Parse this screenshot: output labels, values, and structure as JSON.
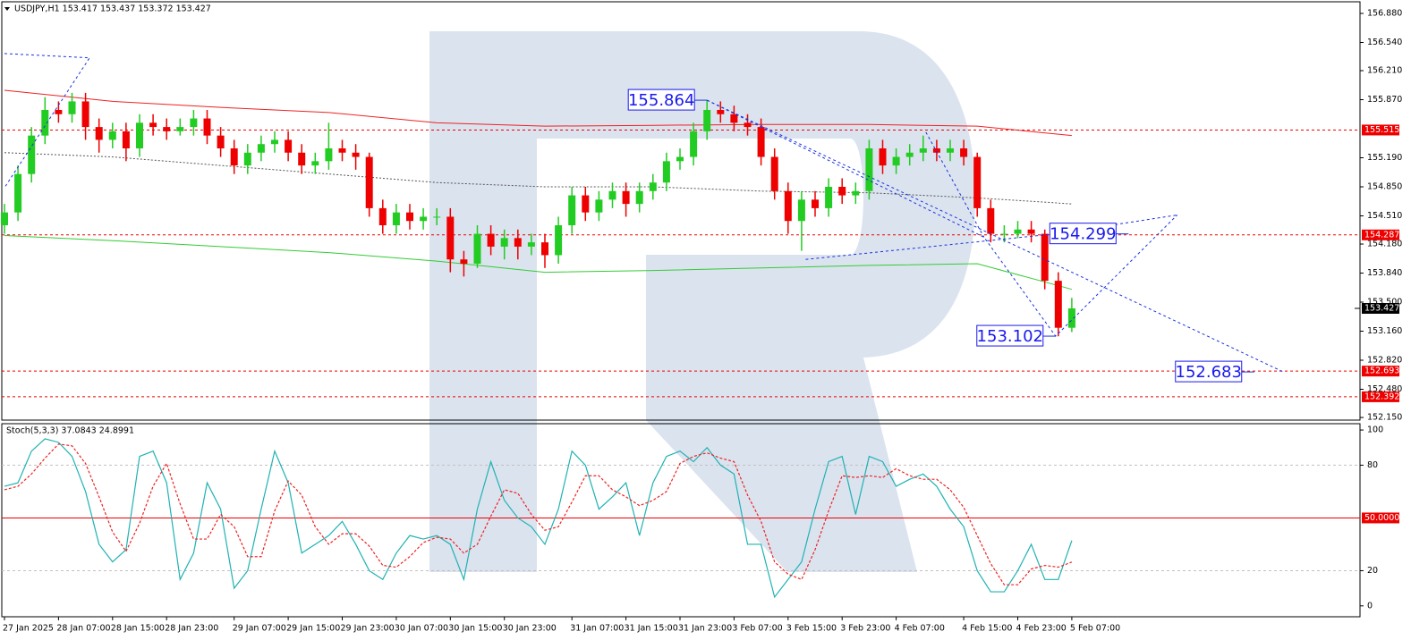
{
  "chart_data": [
    {
      "type": "candlestick",
      "title": "USDJPY,H1 153.417 153.437 153.372 153.427",
      "categories": [
        "27 Jan 2025",
        null,
        null,
        null,
        "28 Jan 07:00",
        null,
        null,
        null,
        "28 Jan 15:00",
        null,
        null,
        null,
        "28 Jan 23:00",
        null,
        null,
        null,
        null,
        "29 Jan 07:00",
        null,
        null,
        null,
        "29 Jan 15:00",
        null,
        null,
        null,
        "29 Jan 23:00",
        null,
        null,
        null,
        "30 Jan 07:00",
        null,
        null,
        null,
        "30 Jan 15:00",
        null,
        null,
        null,
        "30 Jan 23:00",
        null,
        null,
        null,
        null,
        "31 Jan 07:00",
        null,
        null,
        null,
        "31 Jan 15:00",
        null,
        null,
        null,
        "31 Jan 23:00",
        null,
        null,
        null,
        "3 Feb 07:00",
        null,
        null,
        null,
        "3 Feb 15:00",
        null,
        null,
        null,
        "3 Feb 23:00",
        null,
        null,
        null,
        "4 Feb 07:00",
        null,
        null,
        null,
        null,
        "4 Feb 15:00",
        null,
        null,
        null,
        "4 Feb 23:00",
        null,
        null,
        null,
        "5 Feb 07:00"
      ],
      "open": [
        154.4,
        154.55,
        155.0,
        155.45,
        155.75,
        155.7,
        155.85,
        155.55,
        155.4,
        155.5,
        155.3,
        155.6,
        155.55,
        155.5,
        155.55,
        155.65,
        155.45,
        155.3,
        155.1,
        155.25,
        155.35,
        155.4,
        155.25,
        155.1,
        155.15,
        155.3,
        155.25,
        155.2,
        154.6,
        154.4,
        154.55,
        154.45,
        154.5,
        154.5,
        154.0,
        153.95,
        154.3,
        154.15,
        154.25,
        154.15,
        154.2,
        154.05,
        154.4,
        154.75,
        154.55,
        154.7,
        154.8,
        154.65,
        154.8,
        154.9,
        155.15,
        155.2,
        155.5,
        155.75,
        155.7,
        155.6,
        155.55,
        155.2,
        154.8,
        154.45,
        154.7,
        154.6,
        154.85,
        154.75,
        154.8,
        155.3,
        155.1,
        155.2,
        155.25,
        155.3,
        155.25,
        155.3,
        155.2,
        154.6,
        154.3,
        154.3,
        154.35,
        154.3,
        153.75,
        153.2
      ],
      "high": [
        154.65,
        155.1,
        155.55,
        155.9,
        155.85,
        155.95,
        155.95,
        155.65,
        155.6,
        155.6,
        155.7,
        155.7,
        155.65,
        155.65,
        155.75,
        155.75,
        155.55,
        155.4,
        155.35,
        155.45,
        155.5,
        155.5,
        155.35,
        155.25,
        155.6,
        155.4,
        155.35,
        155.25,
        154.7,
        154.65,
        154.65,
        154.6,
        154.6,
        154.6,
        154.1,
        154.4,
        154.4,
        154.35,
        154.35,
        154.3,
        154.3,
        154.5,
        154.85,
        154.85,
        154.8,
        154.9,
        154.9,
        154.9,
        155.0,
        155.25,
        155.3,
        155.6,
        155.86,
        155.85,
        155.8,
        155.7,
        155.65,
        155.3,
        154.9,
        154.8,
        154.8,
        154.95,
        154.95,
        154.9,
        155.4,
        155.4,
        155.3,
        155.35,
        155.45,
        155.4,
        155.4,
        155.4,
        155.25,
        154.7,
        154.4,
        154.45,
        154.45,
        154.35,
        153.85,
        153.55
      ],
      "low": [
        154.3,
        154.45,
        154.9,
        155.35,
        155.6,
        155.6,
        155.4,
        155.25,
        155.3,
        155.15,
        155.2,
        155.45,
        155.4,
        155.45,
        155.45,
        155.35,
        155.2,
        155.0,
        155.0,
        155.15,
        155.25,
        155.15,
        155.0,
        155.0,
        155.05,
        155.15,
        155.05,
        154.5,
        154.3,
        154.3,
        154.35,
        154.35,
        154.4,
        153.85,
        153.8,
        153.9,
        154.05,
        154.0,
        154.0,
        154.05,
        153.9,
        153.95,
        154.3,
        154.45,
        154.45,
        154.6,
        154.5,
        154.55,
        154.7,
        154.8,
        155.05,
        155.1,
        155.4,
        155.6,
        155.5,
        155.45,
        155.1,
        154.7,
        154.3,
        154.1,
        154.5,
        154.5,
        154.65,
        154.65,
        154.7,
        155.0,
        155.0,
        155.1,
        155.15,
        155.15,
        155.15,
        155.1,
        154.5,
        154.2,
        154.2,
        154.25,
        154.2,
        153.65,
        153.1,
        153.15
      ],
      "close": [
        154.55,
        155.0,
        155.45,
        155.75,
        155.7,
        155.85,
        155.55,
        155.4,
        155.5,
        155.3,
        155.6,
        155.55,
        155.5,
        155.55,
        155.65,
        155.45,
        155.3,
        155.1,
        155.25,
        155.35,
        155.4,
        155.25,
        155.1,
        155.15,
        155.3,
        155.25,
        155.2,
        154.6,
        154.4,
        154.55,
        154.45,
        154.5,
        154.5,
        154.0,
        153.95,
        154.3,
        154.15,
        154.25,
        154.15,
        154.2,
        154.05,
        154.4,
        154.75,
        154.55,
        154.7,
        154.8,
        154.65,
        154.8,
        154.9,
        155.15,
        155.2,
        155.5,
        155.75,
        155.7,
        155.6,
        155.55,
        155.2,
        154.8,
        154.45,
        154.7,
        154.6,
        154.85,
        154.75,
        154.8,
        155.3,
        155.1,
        155.2,
        155.25,
        155.3,
        155.25,
        155.3,
        155.2,
        154.6,
        154.3,
        154.3,
        154.35,
        154.3,
        153.75,
        153.2,
        153.427
      ],
      "up_color": "#22cc22",
      "down_color": "#ee0000",
      "ylim": [
        152.119,
        157.016
      ],
      "yticks": [
        {
          "value": 156.88,
          "label": "156.880"
        },
        {
          "value": 156.54,
          "label": "156.540"
        },
        {
          "value": 156.21,
          "label": "156.210"
        },
        {
          "value": 155.87,
          "label": "155.870"
        },
        {
          "value": 155.19,
          "label": "155.190"
        },
        {
          "value": 154.85,
          "label": "154.850"
        },
        {
          "value": 154.51,
          "label": "154.510"
        },
        {
          "value": 154.18,
          "label": "154.180"
        },
        {
          "value": 153.84,
          "label": "153.840"
        },
        {
          "value": 153.5,
          "label": "153.500"
        },
        {
          "value": 153.16,
          "label": "153.160"
        },
        {
          "value": 152.82,
          "label": "152.820"
        },
        {
          "value": 152.48,
          "label": "152.480"
        },
        {
          "value": 152.15,
          "label": "152.150"
        }
      ],
      "lines": [
        {
          "color": "#ee2222",
          "dash": false,
          "x": [
            0,
            8,
            16,
            24,
            32,
            40,
            48,
            56,
            64,
            72,
            79
          ],
          "values": [
            155.98,
            155.85,
            155.78,
            155.72,
            155.6,
            155.56,
            155.57,
            155.58,
            155.58,
            155.56,
            155.45
          ]
        },
        {
          "color": "#555555",
          "dash": true,
          "x": [
            0,
            8,
            16,
            24,
            32,
            40,
            48,
            56,
            64,
            72,
            79
          ],
          "values": [
            155.25,
            155.2,
            155.1,
            155.0,
            154.9,
            154.85,
            154.85,
            154.8,
            154.78,
            154.72,
            154.65
          ]
        },
        {
          "color": "#33cc33",
          "dash": false,
          "x": [
            0,
            8,
            16,
            24,
            32,
            40,
            48,
            56,
            64,
            72,
            79
          ],
          "values": [
            154.28,
            154.22,
            154.15,
            154.08,
            153.98,
            153.85,
            153.87,
            153.9,
            153.93,
            153.95,
            153.65
          ]
        }
      ],
      "forecast_color": "#1a33dd",
      "forecast": [
        {
          "x": [
            0,
            6.3,
            0
          ],
          "values": [
            156.41,
            156.36,
            154.84
          ]
        },
        {
          "x": [
            52,
            72.5,
            77.8,
            86.8
          ],
          "values": [
            155.864,
            154.26,
            153.102,
            154.52
          ]
        },
        {
          "x": [
            52,
            94.7
          ],
          "values": [
            155.864,
            152.68
          ]
        },
        {
          "x": [
            59.3,
            77.8,
            86.8
          ],
          "values": [
            154.0,
            154.3,
            154.52
          ]
        },
        {
          "x": [
            68.2,
            72.5
          ],
          "values": [
            155.49,
            154.26
          ]
        }
      ],
      "annotations": [
        {
          "value": 155.864,
          "x": 52
        },
        {
          "value": 154.299,
          "x": 83.2
        },
        {
          "value": 153.102,
          "x": 77.8
        },
        {
          "value": 152.683,
          "x": 92.5
        }
      ],
      "levels": [
        155.515,
        154.287,
        152.693,
        152.392
      ],
      "level_color": "#ee0000",
      "last": 153.427
    },
    {
      "type": "line",
      "title": "Stoch(5,3,3) 37.0843 24.8991",
      "ylim": [
        -6.2,
        103.6
      ],
      "yticks": [
        0,
        20,
        80,
        100
      ],
      "dashed_levels": [
        80,
        20
      ],
      "levels": [
        {
          "value": 50,
          "label": "50.0000"
        }
      ],
      "level_color": "#ee0000",
      "series": [
        {
          "color": "#20b2b2",
          "dash": false,
          "values": [
            68,
            70,
            88,
            95,
            93,
            85,
            65,
            35,
            25,
            32,
            85,
            88,
            70,
            15,
            30,
            70,
            55,
            10,
            20,
            55,
            88,
            70,
            30,
            35,
            40,
            48,
            35,
            20,
            15,
            30,
            40,
            38,
            40,
            35,
            15,
            55,
            82,
            60,
            50,
            45,
            35,
            55,
            88,
            80,
            55,
            62,
            70,
            40,
            70,
            85,
            88,
            82,
            90,
            80,
            75,
            35,
            35,
            5,
            15,
            25,
            55,
            82,
            85,
            52,
            85,
            82,
            68,
            72,
            75,
            68,
            55,
            45,
            20,
            8,
            8,
            20,
            35,
            15,
            15,
            37.0843
          ]
        },
        {
          "color": "#ee2222",
          "dash": true,
          "values": [
            66,
            68,
            75,
            84,
            92,
            91,
            81,
            62,
            42,
            31,
            47,
            68,
            81,
            58,
            38,
            38,
            52,
            45,
            28,
            28,
            54,
            71,
            63,
            45,
            35,
            41,
            41,
            34,
            23,
            22,
            28,
            36,
            39,
            38,
            30,
            35,
            51,
            66,
            64,
            52,
            43,
            45,
            59,
            74,
            74,
            66,
            62,
            57,
            60,
            65,
            81,
            85,
            87,
            84,
            82,
            63,
            48,
            25,
            18,
            15,
            32,
            54,
            74,
            73,
            74,
            73,
            78,
            74,
            72,
            72,
            66,
            56,
            40,
            24,
            12,
            12,
            21,
            23,
            22,
            24.8991
          ]
        }
      ]
    }
  ]
}
